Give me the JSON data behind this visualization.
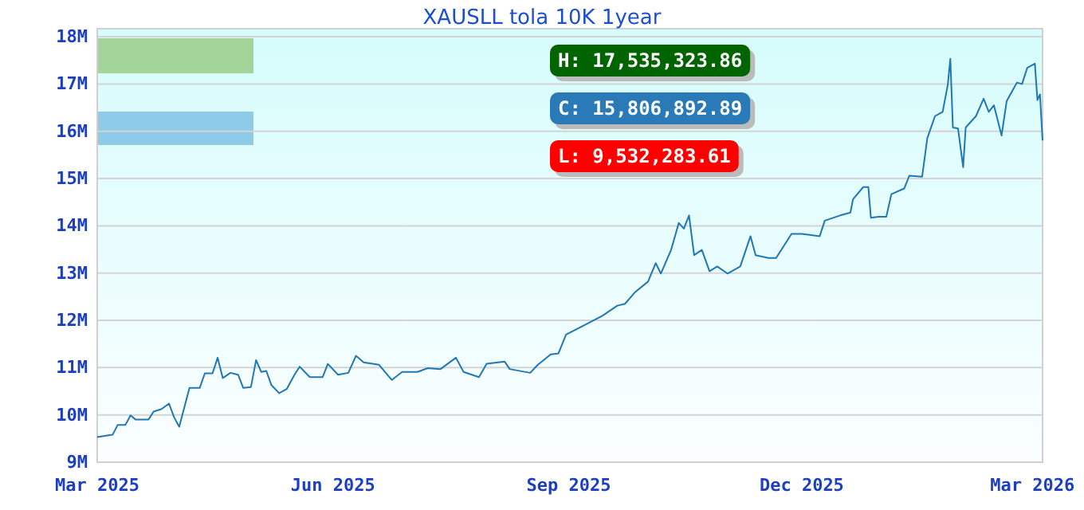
{
  "chart_data": {
    "type": "line",
    "title": "XAUSLL tola 10K 1year",
    "x": [
      "2025-03-01",
      "2025-03-07",
      "2025-03-09",
      "2025-03-12",
      "2025-03-14",
      "2025-03-16",
      "2025-03-21",
      "2025-03-23",
      "2025-03-26",
      "2025-03-29",
      "2025-03-31",
      "2025-04-02",
      "2025-04-06",
      "2025-04-10",
      "2025-04-12",
      "2025-04-15",
      "2025-04-17",
      "2025-04-19",
      "2025-04-22",
      "2025-04-25",
      "2025-04-27",
      "2025-04-30",
      "2025-05-02",
      "2025-05-04",
      "2025-05-06",
      "2025-05-08",
      "2025-05-11",
      "2025-05-14",
      "2025-05-17",
      "2025-05-19",
      "2025-05-23",
      "2025-05-28",
      "2025-05-30",
      "2025-06-03",
      "2025-06-07",
      "2025-06-10",
      "2025-06-13",
      "2025-06-19",
      "2025-06-24",
      "2025-06-28",
      "2025-07-04",
      "2025-07-08",
      "2025-07-13",
      "2025-07-19",
      "2025-07-22",
      "2025-07-28",
      "2025-07-31",
      "2025-08-07",
      "2025-08-09",
      "2025-08-17",
      "2025-08-20",
      "2025-08-25",
      "2025-08-28",
      "2025-08-31",
      "2025-09-05",
      "2025-09-14",
      "2025-09-20",
      "2025-09-23",
      "2025-09-27",
      "2025-10-02",
      "2025-10-05",
      "2025-10-07",
      "2025-10-11",
      "2025-10-14",
      "2025-10-16",
      "2025-10-18",
      "2025-10-20",
      "2025-10-23",
      "2025-10-26",
      "2025-10-29",
      "2025-11-02",
      "2025-11-07",
      "2025-11-11",
      "2025-11-13",
      "2025-11-18",
      "2025-11-21",
      "2025-11-27",
      "2025-12-01",
      "2025-12-08",
      "2025-12-10",
      "2025-12-16",
      "2025-12-20",
      "2025-12-21",
      "2025-12-25",
      "2025-12-27",
      "2025-12-28",
      "2025-12-31",
      "2026-01-03",
      "2026-01-05",
      "2026-01-10",
      "2026-01-12",
      "2026-01-17",
      "2026-01-19",
      "2026-01-22",
      "2026-01-25",
      "2026-01-27",
      "2026-01-28",
      "2026-01-29",
      "2026-01-31",
      "2026-02-02",
      "2026-02-03",
      "2026-02-07",
      "2026-02-10",
      "2026-02-12",
      "2026-02-14",
      "2026-02-17",
      "2026-02-19",
      "2026-02-23",
      "2026-02-25",
      "2026-02-27",
      "2026-03-02",
      "2026-03-03",
      "2026-03-04",
      "2026-03-05"
    ],
    "series": [
      {
        "color": "#1f77b4",
        "values": [
          9532000,
          9580000,
          9790000,
          9790000,
          9990000,
          9900000,
          9900000,
          10070000,
          10120000,
          10240000,
          9950000,
          9750000,
          10570000,
          10570000,
          10880000,
          10880000,
          11210000,
          10780000,
          10890000,
          10850000,
          10570000,
          10590000,
          11160000,
          10910000,
          10930000,
          10630000,
          10460000,
          10550000,
          10850000,
          11020000,
          10800000,
          10800000,
          11080000,
          10850000,
          10890000,
          11250000,
          11110000,
          11060000,
          10740000,
          10910000,
          10910000,
          10990000,
          10970000,
          11210000,
          10910000,
          10800000,
          11080000,
          11130000,
          10970000,
          10890000,
          11060000,
          11280000,
          11300000,
          11700000,
          11840000,
          12090000,
          12310000,
          12350000,
          12600000,
          12820000,
          13210000,
          12990000,
          13490000,
          14060000,
          13940000,
          14220000,
          13380000,
          13490000,
          13040000,
          13140000,
          12990000,
          13140000,
          13780000,
          13380000,
          13320000,
          13320000,
          13830000,
          13830000,
          13780000,
          14110000,
          14220000,
          14280000,
          14560000,
          14820000,
          14820000,
          14170000,
          14190000,
          14190000,
          14670000,
          14790000,
          15060000,
          15040000,
          15850000,
          16320000,
          16410000,
          16980000,
          17535000,
          16080000,
          16060000,
          15240000,
          16080000,
          16320000,
          16690000,
          16410000,
          16550000,
          15910000,
          16640000,
          17030000,
          17000000,
          17340000,
          17430000,
          16660000,
          16780000,
          15807000
        ]
      }
    ],
    "xlim": [
      "2025-03-01",
      "2026-03-05"
    ],
    "xticks": [
      {
        "value": "2025-03-01",
        "label": "Mar 2025"
      },
      {
        "value": "2025-06-01",
        "label": "Jun 2025"
      },
      {
        "value": "2025-09-01",
        "label": "Sep 2025"
      },
      {
        "value": "2025-12-01",
        "label": "Dec 2025"
      },
      {
        "value": "2026-03-01",
        "label": "Mar 2026"
      }
    ],
    "ylim": [
      9000000,
      18170000
    ],
    "yticks": [
      {
        "value": 9000000,
        "label": "9M"
      },
      {
        "value": 10000000,
        "label": "10M"
      },
      {
        "value": 11000000,
        "label": "11M"
      },
      {
        "value": 12000000,
        "label": "12M"
      },
      {
        "value": 13000000,
        "label": "13M"
      },
      {
        "value": 14000000,
        "label": "14M"
      },
      {
        "value": 15000000,
        "label": "15M"
      },
      {
        "value": 16000000,
        "label": "16M"
      },
      {
        "value": 17000000,
        "label": "17M"
      },
      {
        "value": 18000000,
        "label": "18M"
      }
    ],
    "grid": "y",
    "annotations": [
      "H: 17,535,323.86",
      "C: 15,806,892.89",
      "L: 9,532,283.61"
    ]
  }
}
